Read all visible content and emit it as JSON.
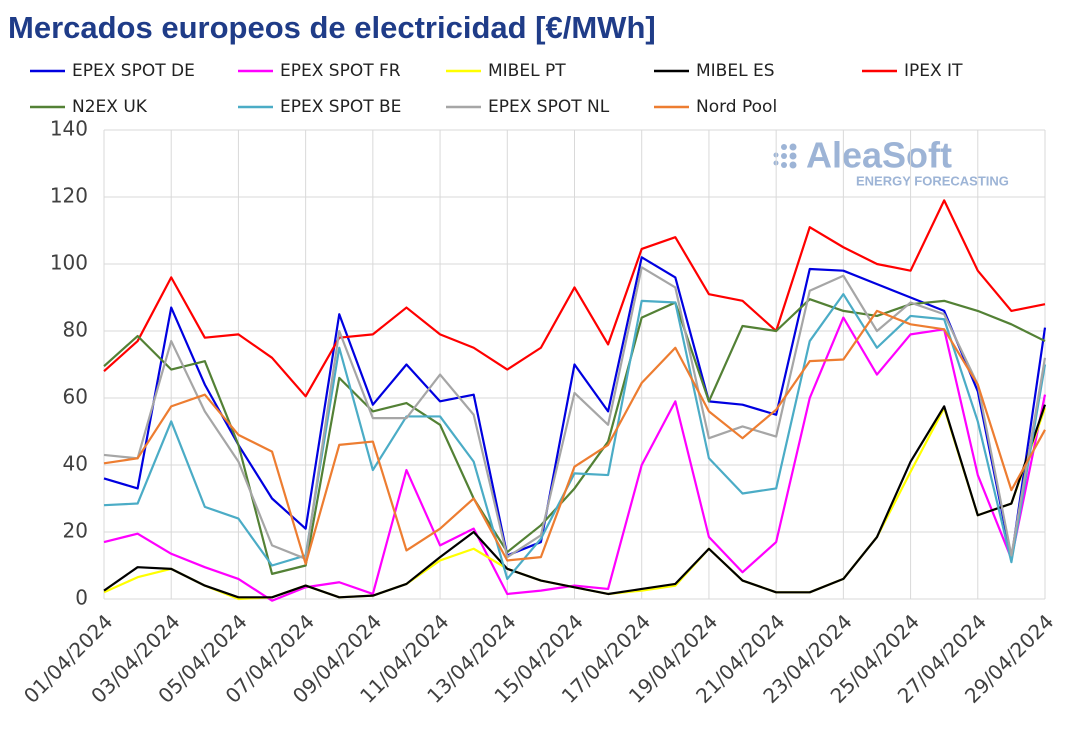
{
  "chart_data": {
    "type": "line",
    "title": "Mercados europeos de electricidad [€/MWh]",
    "watermark": {
      "brand": "AleaSoft",
      "tagline": "ENERGY FORECASTING"
    },
    "categories": [
      "01/04/2024",
      null,
      "03/04/2024",
      null,
      "05/04/2024",
      null,
      "07/04/2024",
      null,
      "09/04/2024",
      null,
      "11/04/2024",
      null,
      "13/04/2024",
      null,
      "15/04/2024",
      null,
      "17/04/2024",
      null,
      "19/04/2024",
      null,
      "21/04/2024",
      null,
      "23/04/2024",
      null,
      "25/04/2024",
      null,
      "27/04/2024",
      null,
      "29/04/2024"
    ],
    "ylim": [
      0,
      140
    ],
    "yticks": [
      0,
      20,
      40,
      60,
      80,
      100,
      120,
      140
    ],
    "grid": true,
    "series": [
      {
        "name": "EPEX SPOT DE",
        "color": "#0000e0",
        "values": [
          36,
          33,
          87,
          64,
          46,
          30,
          21,
          85,
          58,
          70,
          59,
          61,
          13,
          17,
          70,
          56,
          102,
          96,
          59,
          58,
          55,
          98.5,
          98,
          94,
          90,
          86,
          62,
          12,
          81
        ]
      },
      {
        "name": "EPEX SPOT FR",
        "color": "#ff00ff",
        "values": [
          17,
          19.5,
          13.5,
          9.5,
          6,
          -0.5,
          3.5,
          5,
          1.5,
          38.5,
          16,
          21,
          1.5,
          2.5,
          4,
          3,
          40,
          59,
          18.5,
          8,
          17,
          60,
          84,
          67,
          79,
          80.5,
          37,
          12,
          61
        ]
      },
      {
        "name": "MIBEL PT",
        "color": "#ffff00",
        "values": [
          2,
          6.5,
          9,
          4,
          0,
          0.5,
          4,
          0.5,
          1,
          4.5,
          11.5,
          15,
          9,
          5.5,
          3.5,
          1.5,
          2.5,
          4,
          15,
          5.5,
          2,
          2,
          6,
          18.5,
          38,
          57,
          25,
          28.5,
          57
        ]
      },
      {
        "name": "MIBEL ES",
        "color": "#000000",
        "values": [
          2.5,
          9.5,
          9,
          4,
          0.5,
          0.5,
          4,
          0.5,
          1,
          4.5,
          12.5,
          20,
          9,
          5.5,
          3.5,
          1.5,
          3,
          4.5,
          15,
          5.5,
          2,
          2,
          6,
          18.5,
          41,
          57.5,
          25,
          28.5,
          58
        ]
      },
      {
        "name": "IPEX IT",
        "color": "#ff0000",
        "values": [
          68,
          77,
          96,
          78,
          79,
          72,
          60.5,
          78,
          79,
          87,
          79,
          75,
          68.5,
          75,
          93,
          76,
          104.5,
          108,
          91,
          89,
          80,
          111,
          105,
          100,
          98,
          119,
          98,
          86,
          88
        ]
      },
      {
        "name": "N2EX UK",
        "color": "#538135",
        "values": [
          69.5,
          78.5,
          68.5,
          71,
          46,
          7.5,
          10,
          66,
          56,
          58.5,
          52,
          30,
          14,
          22,
          33,
          47,
          84,
          88.5,
          59,
          81.5,
          80,
          89.5,
          86,
          84.5,
          88,
          89,
          86,
          82,
          77
        ]
      },
      {
        "name": "EPEX SPOT BE",
        "color": "#4bacc6",
        "values": [
          28,
          28.5,
          53,
          27.5,
          24,
          10,
          13,
          75,
          38.5,
          54.5,
          54.5,
          41,
          6,
          18,
          37.5,
          37,
          89,
          88.5,
          42,
          31.5,
          33,
          77,
          91,
          75,
          84.5,
          83.5,
          53,
          11,
          70
        ]
      },
      {
        "name": "EPEX SPOT NL",
        "color": "#a6a6a6",
        "values": [
          43,
          42,
          77,
          56,
          41,
          16,
          12,
          80,
          54,
          54,
          67,
          55,
          12.5,
          19,
          61.5,
          52,
          99,
          93,
          48,
          51.5,
          48.5,
          92,
          96.5,
          80,
          88.5,
          85,
          64,
          13,
          72
        ]
      },
      {
        "name": "Nord Pool",
        "color": "#ed7d31",
        "values": [
          40.5,
          42,
          57.5,
          61,
          49,
          44,
          10.5,
          46,
          47,
          14.5,
          21,
          30,
          11.5,
          12.5,
          39.5,
          46,
          64.5,
          75,
          56,
          48,
          56.5,
          71,
          71.5,
          86,
          82,
          80.5,
          64,
          32.5,
          50.5
        ]
      }
    ]
  }
}
